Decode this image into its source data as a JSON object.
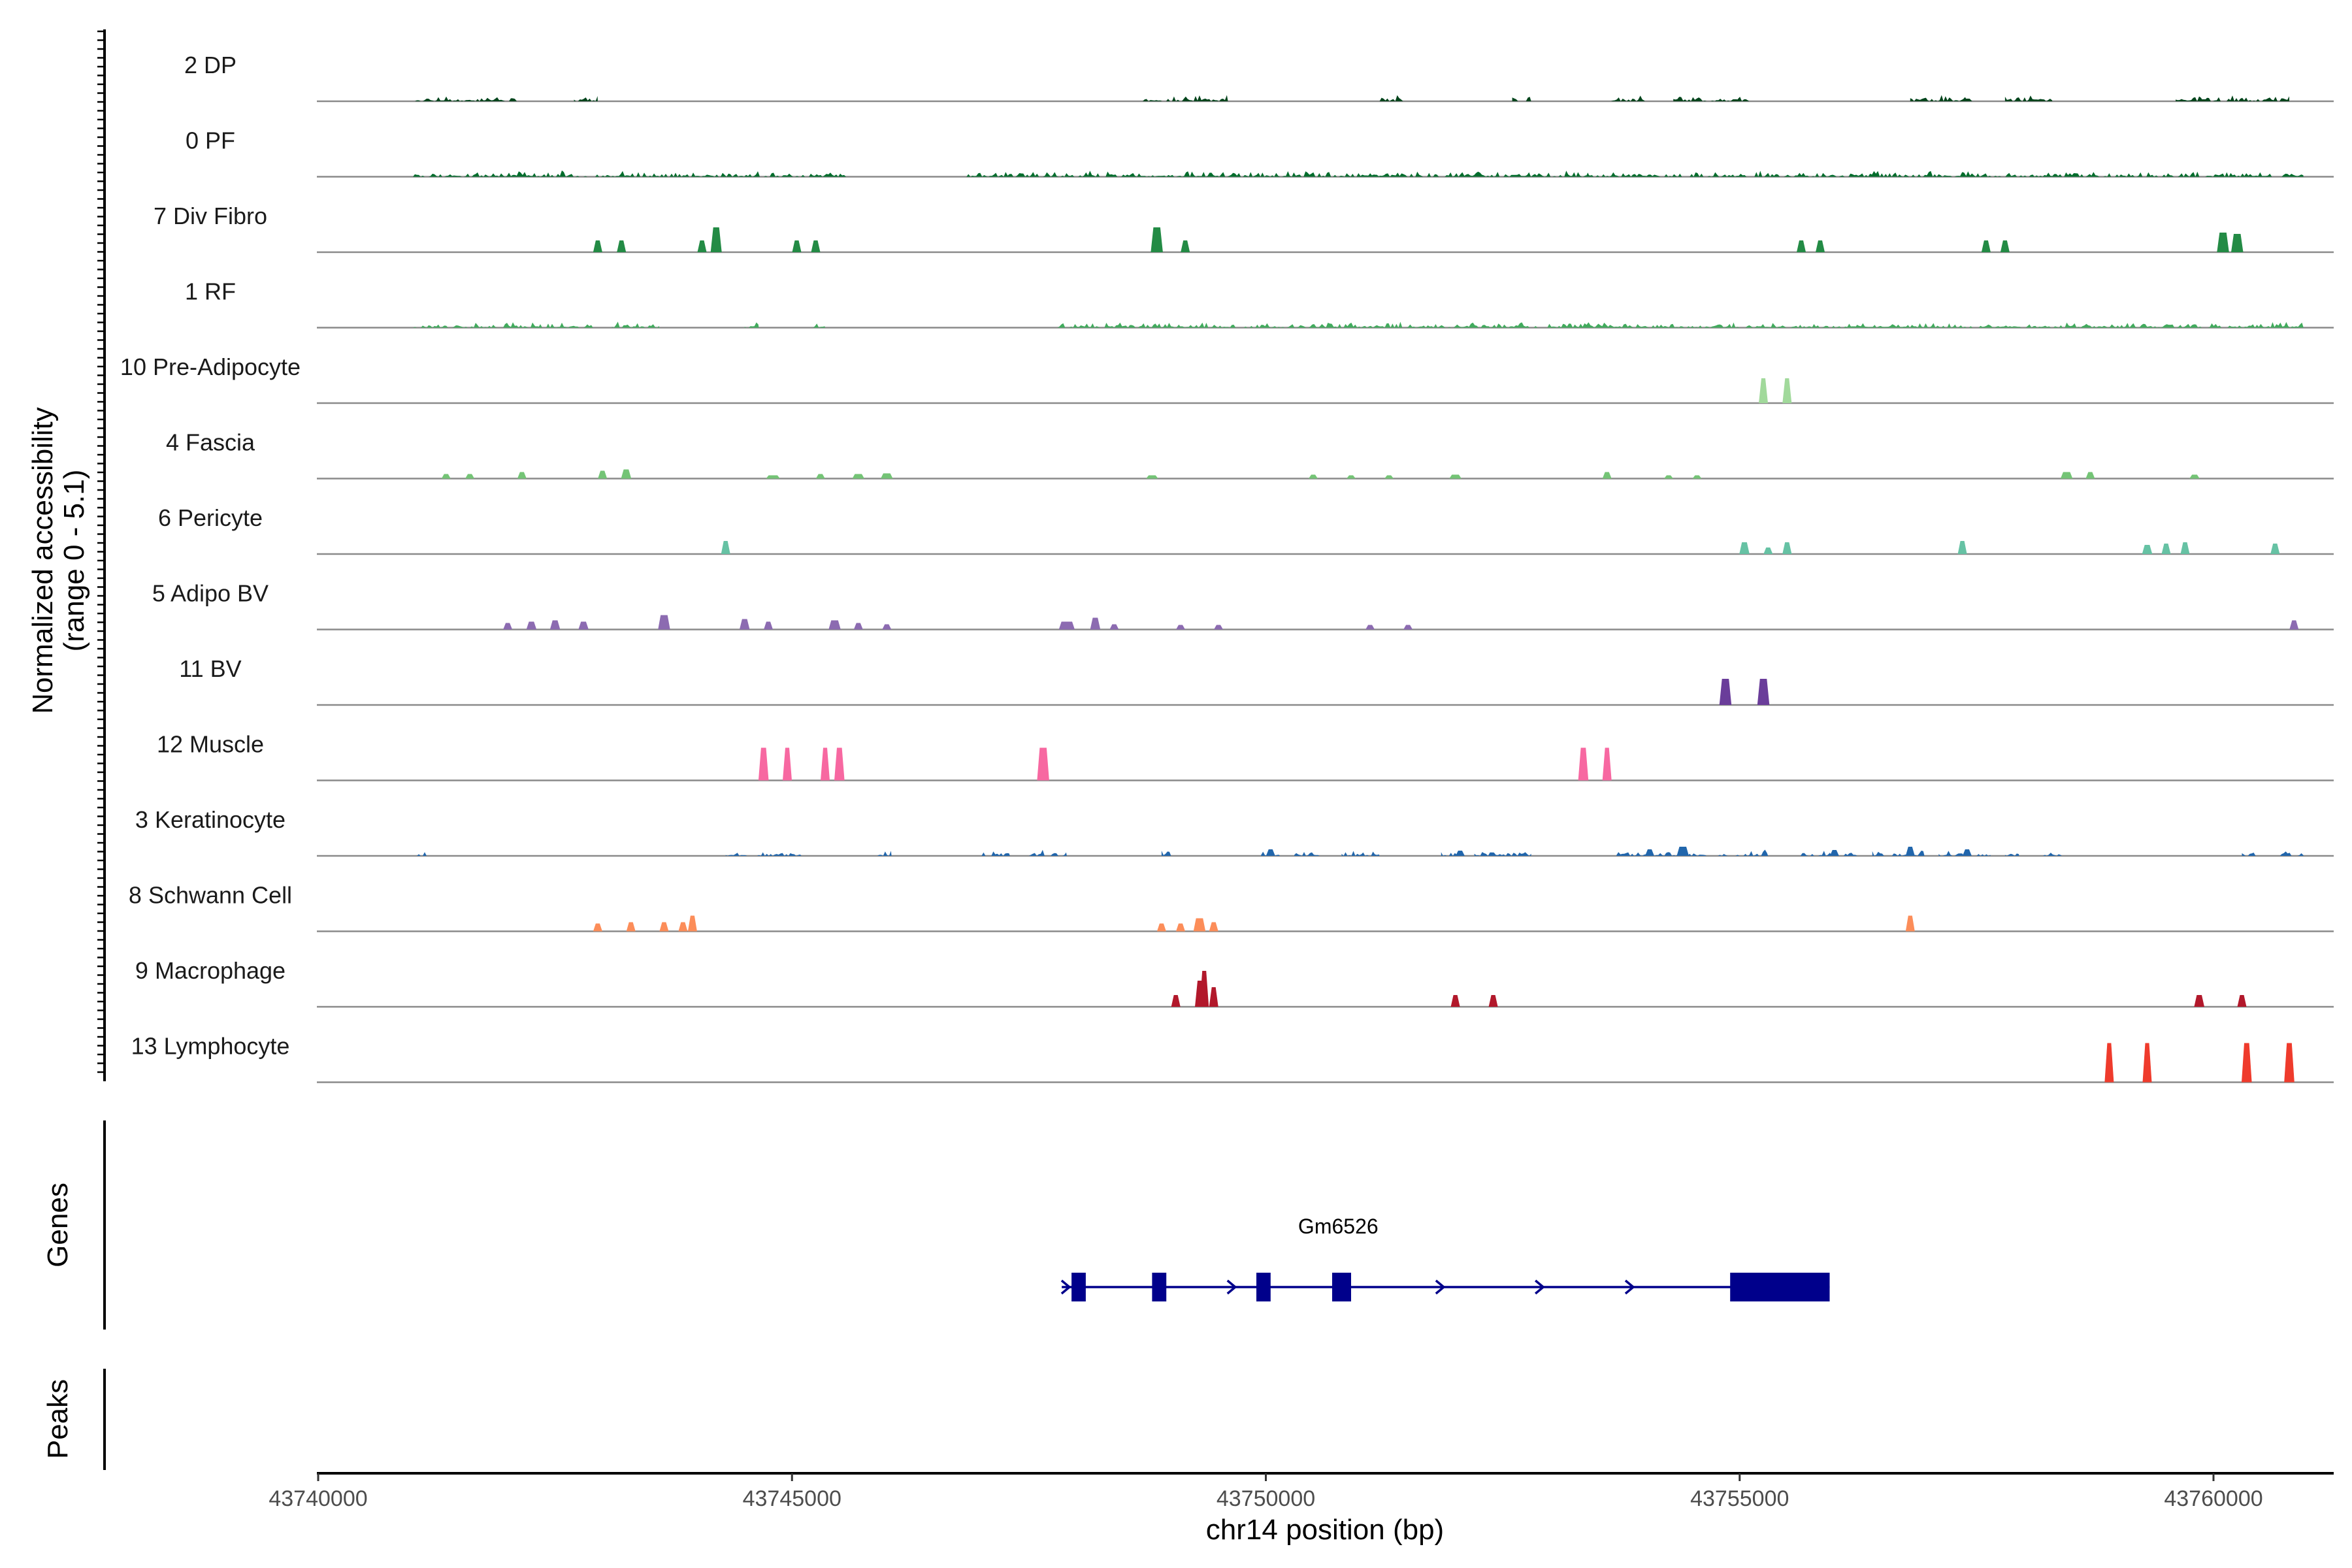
{
  "chart_data": {
    "type": "coverage",
    "title": "",
    "xlabel": "chr14 position (bp)",
    "ylabel": "Normalized accessibility",
    "ylabel_range": "(range 0 - 5.1)",
    "y_range": [
      0,
      5.1
    ],
    "xlim": [
      43739900,
      43762000
    ],
    "x_ticks": [
      43740000,
      43745000,
      43750000,
      43755000,
      43760000
    ],
    "x_tick_labels": [
      "43740000",
      "43745000",
      "43750000",
      "43755000",
      "43760000"
    ],
    "panel_labels": {
      "genes": "Genes",
      "peaks": "Peaks"
    },
    "tracks": [
      {
        "name": "2 DP",
        "color": "#00441b",
        "kind": "noise",
        "seed": 11,
        "mask": [
          [
            43741000,
            43742100
          ],
          [
            43742700,
            43742950
          ],
          [
            43748700,
            43749600
          ],
          [
            43751200,
            43751500
          ],
          [
            43752600,
            43752800
          ],
          [
            43753600,
            43754000
          ],
          [
            43754300,
            43755100
          ],
          [
            43756800,
            43757400
          ],
          [
            43757800,
            43758300
          ],
          [
            43759600,
            43760800
          ]
        ],
        "peaks": [
          [
            43754950,
            40,
            3
          ],
          [
            43757400,
            80,
            4
          ],
          [
            43759900,
            60,
            3
          ]
        ]
      },
      {
        "name": "0 PF",
        "color": "#006d2c",
        "kind": "noise",
        "seed": 23,
        "mask": [
          [
            43741000,
            43745600
          ],
          [
            43746800,
            43760950
          ]
        ],
        "peaks": [
          [
            43742150,
            80,
            3
          ],
          [
            43751150,
            60,
            3
          ],
          [
            43753400,
            80,
            2
          ]
        ]
      },
      {
        "name": "7 Div Fibro",
        "color": "#238b45",
        "kind": "peaks",
        "peaks": [
          [
            43742950,
            60,
            18
          ],
          [
            43743200,
            60,
            18
          ],
          [
            43744050,
            60,
            18
          ],
          [
            43744200,
            90,
            38
          ],
          [
            43745050,
            40,
            18
          ],
          [
            43745250,
            60,
            18
          ],
          [
            43748850,
            100,
            38
          ],
          [
            43749150,
            60,
            18
          ],
          [
            43755650,
            50,
            18
          ],
          [
            43755850,
            50,
            18
          ],
          [
            43757600,
            60,
            18
          ],
          [
            43757800,
            50,
            18
          ],
          [
            43760100,
            100,
            30
          ],
          [
            43760250,
            100,
            28
          ]
        ]
      },
      {
        "name": "1 RF",
        "color": "#41ab5d",
        "kind": "noise",
        "seed": 37,
        "mask": [
          [
            43741000,
            43742900
          ],
          [
            43743100,
            43743600
          ],
          [
            43744500,
            43744650
          ],
          [
            43745200,
            43745350
          ],
          [
            43747800,
            43760950
          ]
        ],
        "peaks": [
          [
            43742300,
            60,
            2
          ],
          [
            43749100,
            40,
            2
          ],
          [
            43755200,
            60,
            2
          ],
          [
            43756200,
            60,
            2
          ],
          [
            43758500,
            60,
            2
          ]
        ]
      },
      {
        "name": "10 Pre-Adipocyte",
        "color": "#a1d99b",
        "kind": "peaks",
        "peaks": [
          [
            43755250,
            60,
            38
          ],
          [
            43755500,
            60,
            38
          ]
        ]
      },
      {
        "name": "4 Fascia",
        "color": "#74c476",
        "kind": "peaks",
        "peaks": [
          [
            43741350,
            40,
            7
          ],
          [
            43741600,
            40,
            7
          ],
          [
            43742150,
            60,
            10
          ],
          [
            43743000,
            70,
            12
          ],
          [
            43743250,
            80,
            14
          ],
          [
            43744800,
            120,
            5
          ],
          [
            43745300,
            60,
            7
          ],
          [
            43745700,
            100,
            7
          ],
          [
            43746000,
            100,
            8
          ],
          [
            43748800,
            100,
            5
          ],
          [
            43750500,
            60,
            6
          ],
          [
            43750900,
            60,
            5
          ],
          [
            43751300,
            60,
            5
          ],
          [
            43752000,
            100,
            6
          ],
          [
            43753600,
            60,
            10
          ],
          [
            43754250,
            60,
            5
          ],
          [
            43754550,
            60,
            5
          ],
          [
            43758450,
            100,
            10
          ],
          [
            43758700,
            60,
            10
          ],
          [
            43759800,
            80,
            6
          ]
        ]
      },
      {
        "name": "6 Pericyte",
        "color": "#66c2a4",
        "kind": "peaks",
        "peaks": [
          [
            43744300,
            60,
            20
          ],
          [
            43755050,
            80,
            18
          ],
          [
            43755300,
            60,
            10
          ],
          [
            43755500,
            70,
            18
          ],
          [
            43757350,
            60,
            20
          ],
          [
            43759300,
            80,
            14
          ],
          [
            43759500,
            60,
            16
          ],
          [
            43759700,
            60,
            18
          ],
          [
            43760650,
            70,
            16
          ]
        ]
      },
      {
        "name": "5 Adipo BV",
        "color": "#8c6bb1",
        "kind": "peaks",
        "peaks": [
          [
            43742000,
            60,
            10
          ],
          [
            43742250,
            80,
            12
          ],
          [
            43742500,
            80,
            14
          ],
          [
            43742800,
            80,
            12
          ],
          [
            43743650,
            100,
            22
          ],
          [
            43744500,
            80,
            16
          ],
          [
            43744750,
            60,
            12
          ],
          [
            43745450,
            100,
            14
          ],
          [
            43745700,
            60,
            10
          ],
          [
            43746000,
            60,
            8
          ],
          [
            43747900,
            140,
            12
          ],
          [
            43748200,
            80,
            18
          ],
          [
            43748400,
            60,
            8
          ],
          [
            43749100,
            60,
            7
          ],
          [
            43749500,
            60,
            7
          ],
          [
            43751100,
            60,
            7
          ],
          [
            43751500,
            60,
            7
          ],
          [
            43760850,
            60,
            14
          ]
        ]
      },
      {
        "name": "11 BV",
        "color": "#6a3d9a",
        "kind": "peaks",
        "peaks": [
          [
            43754850,
            100,
            40
          ],
          [
            43755250,
            100,
            40
          ]
        ]
      },
      {
        "name": "12 Muscle",
        "color": "#f768a1",
        "kind": "peaks",
        "peaks": [
          [
            43744700,
            80,
            50
          ],
          [
            43744950,
            60,
            50
          ],
          [
            43745350,
            60,
            50
          ],
          [
            43745500,
            80,
            50
          ],
          [
            43747650,
            100,
            50
          ],
          [
            43753350,
            80,
            50
          ],
          [
            43753600,
            60,
            50
          ]
        ]
      },
      {
        "name": "3 Keratinocyte",
        "color": "#2166ac",
        "kind": "noise",
        "seed": 53,
        "mask": [
          [
            43741000,
            43741150
          ],
          [
            43744300,
            43745100
          ],
          [
            43745900,
            43746050
          ],
          [
            43747000,
            43747300
          ],
          [
            43747500,
            43747900
          ],
          [
            43748900,
            43749000
          ],
          [
            43749950,
            43750150
          ],
          [
            43750300,
            43750600
          ],
          [
            43750800,
            43751200
          ],
          [
            43751850,
            43752100
          ],
          [
            43752200,
            43752800
          ],
          [
            43753700,
            43754050
          ],
          [
            43754100,
            43754650
          ],
          [
            43754750,
            43755300
          ],
          [
            43755600,
            43756300
          ],
          [
            43756400,
            43756950
          ],
          [
            43757100,
            43757400
          ],
          [
            43757500,
            43757650
          ],
          [
            43757800,
            43757950
          ],
          [
            43758200,
            43758400
          ],
          [
            43760300,
            43760450
          ],
          [
            43760700,
            43760950
          ]
        ],
        "peaks": [
          [
            43750050,
            60,
            10
          ],
          [
            43752050,
            60,
            8
          ],
          [
            43754050,
            60,
            10
          ],
          [
            43754400,
            100,
            14
          ],
          [
            43756000,
            60,
            9
          ],
          [
            43756800,
            60,
            14
          ],
          [
            43757400,
            60,
            10
          ]
        ]
      },
      {
        "name": "8 Schwann Cell",
        "color": "#fc8d59",
        "kind": "peaks",
        "peaks": [
          [
            43742950,
            60,
            12
          ],
          [
            43743300,
            60,
            14
          ],
          [
            43743650,
            40,
            14
          ],
          [
            43743850,
            60,
            14
          ],
          [
            43743950,
            40,
            24
          ],
          [
            43748900,
            60,
            12
          ],
          [
            43749100,
            60,
            12
          ],
          [
            43749300,
            100,
            20
          ],
          [
            43749450,
            60,
            14
          ],
          [
            43756800,
            60,
            24
          ]
        ]
      },
      {
        "name": "9 Macrophage",
        "color": "#b2182b",
        "kind": "peaks",
        "peaks": [
          [
            43749050,
            60,
            18
          ],
          [
            43749300,
            60,
            40
          ],
          [
            43749350,
            40,
            55
          ],
          [
            43749450,
            60,
            30
          ],
          [
            43752000,
            60,
            18
          ],
          [
            43752400,
            60,
            18
          ],
          [
            43759850,
            80,
            18
          ],
          [
            43760300,
            60,
            18
          ]
        ]
      },
      {
        "name": "13 Lymphocyte",
        "color": "#ef3b2c",
        "kind": "peaks",
        "peaks": [
          [
            43758900,
            60,
            60
          ],
          [
            43759300,
            60,
            60
          ],
          [
            43760350,
            80,
            60
          ],
          [
            43760800,
            80,
            60
          ]
        ]
      }
    ],
    "gene": {
      "name": "Gm6526",
      "strand": "+",
      "start": 43747950,
      "end": 43755950,
      "color": "#00008b",
      "exons": [
        [
          43747950,
          43748100
        ],
        [
          43748800,
          43748950
        ],
        [
          43749900,
          43750050
        ],
        [
          43750700,
          43750900
        ],
        [
          43754900,
          43755950
        ]
      ]
    }
  }
}
